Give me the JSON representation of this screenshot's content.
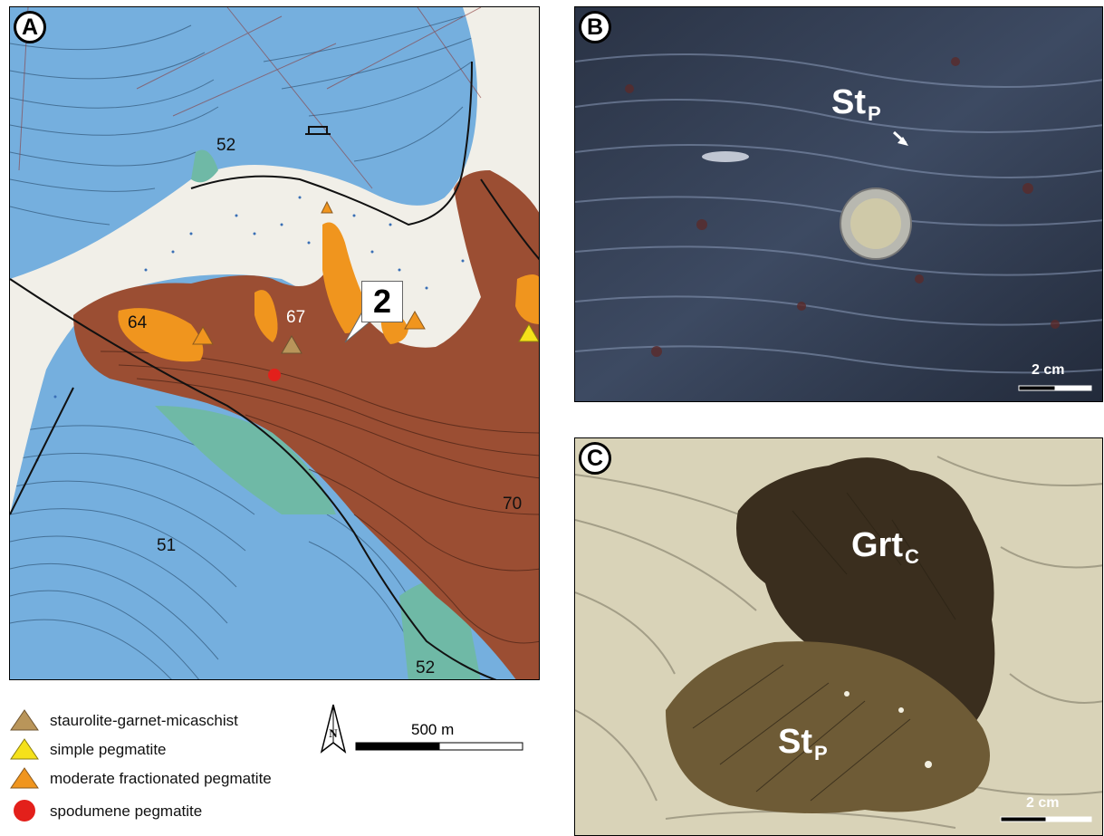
{
  "panels": {
    "a": {
      "label": "A",
      "callout": "2",
      "numbers": [
        "52",
        "64",
        "67",
        "70",
        "51",
        "52"
      ]
    },
    "b": {
      "label": "B",
      "mineral": {
        "main": "St",
        "sub": "P"
      },
      "scale": "2 cm"
    },
    "c": {
      "label": "C",
      "mineral_grt": {
        "main": "Grt",
        "sub": "C"
      },
      "mineral_st": {
        "main": "St",
        "sub": "P"
      },
      "scale": "2 cm"
    }
  },
  "legend": [
    {
      "label": "staurolite-garnet-micaschist",
      "symbol": "triangle",
      "color": "#b9955a"
    },
    {
      "label": "simple pegmatite",
      "symbol": "triangle",
      "color": "#f5e11a"
    },
    {
      "label": "moderate fractionated pegmatite",
      "symbol": "triangle",
      "color": "#f0951e"
    },
    {
      "label": "spodumene pegmatite",
      "symbol": "circle",
      "color": "#e3201b"
    }
  ],
  "north_arrow": "N",
  "map_scale": "500 m",
  "colors": {
    "blue_unit": "#75afde",
    "brown_unit": "#9b4e33",
    "teal_unit": "#6fb9a6",
    "orange_unit": "#f0951e"
  }
}
